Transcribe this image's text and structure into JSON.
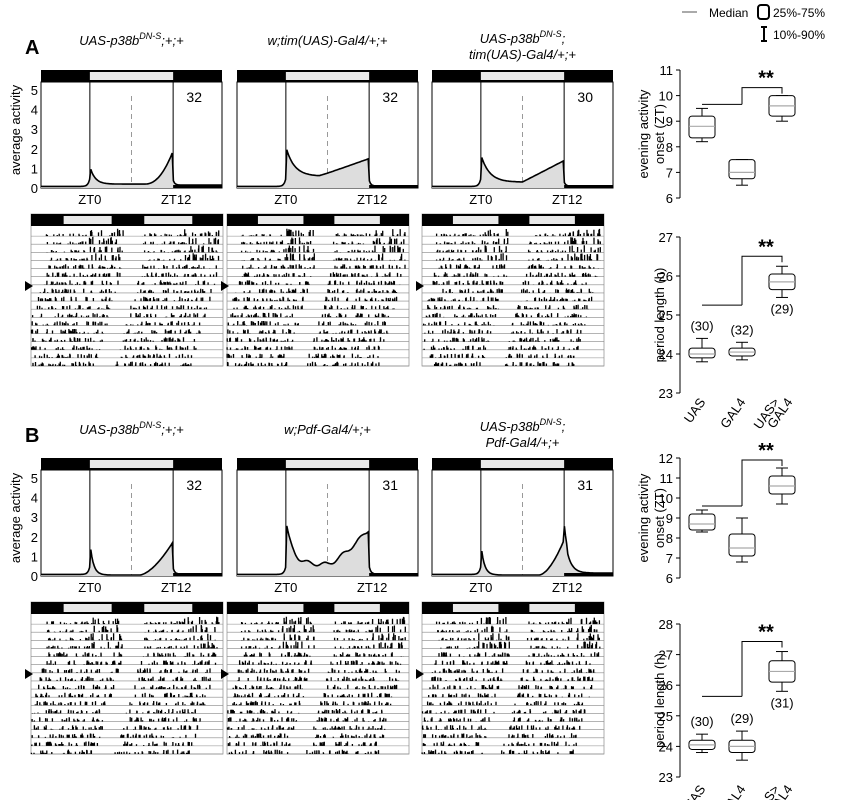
{
  "legend": {
    "median": "Median",
    "iqr": "25%-75%",
    "whisker": "10%-90%"
  },
  "panels": [
    {
      "letter": "A",
      "titles": [
        [
          "UAS-p38b",
          "DN-S",
          ";+;+"
        ],
        [
          "w;tim(UAS)-Gal4/+;+"
        ],
        [
          "UAS-p38b",
          "DN-S",
          ";",
          "tim(UAS)-Gal4/+;+"
        ]
      ],
      "counts": [
        "32",
        "32",
        "30"
      ],
      "xticks": [
        "ZT0",
        "ZT12"
      ],
      "y_label": "average activity",
      "y_ticks": [
        "0",
        "1",
        "2",
        "3",
        "4",
        "5"
      ],
      "evening_onset": {
        "ylabel": [
          "evening activity",
          "onset (ZT)"
        ],
        "yticks": [
          "6",
          "7",
          "8",
          "9",
          "10",
          "11"
        ],
        "ylim": [
          6,
          11
        ],
        "signif": "**",
        "boxes": [
          {
            "group": "UAS",
            "p10": 8.2,
            "q1": 8.35,
            "median": 8.8,
            "q3": 9.2,
            "p90": 9.5
          },
          {
            "group": "GAL4",
            "p10": 6.5,
            "q1": 6.75,
            "median": 7.0,
            "q3": 7.5,
            "p90": 7.5
          },
          {
            "group": "UAS>GAL4",
            "p10": 9.0,
            "q1": 9.2,
            "median": 9.6,
            "q3": 10.0,
            "p90": 10.0
          }
        ]
      },
      "period": {
        "ylabel": "period length (h)",
        "yticks": [
          "23",
          "24",
          "25",
          "26",
          "27"
        ],
        "ylim": [
          23,
          27
        ],
        "signif": "**",
        "ns": [
          "(30)",
          "(32)",
          "(29)"
        ],
        "boxes": [
          {
            "group": "UAS",
            "p10": 23.8,
            "q1": 23.9,
            "median": 24.0,
            "q3": 24.15,
            "p90": 24.4
          },
          {
            "group": "GAL4",
            "p10": 23.85,
            "q1": 23.95,
            "median": 24.05,
            "q3": 24.15,
            "p90": 24.3
          },
          {
            "group": "UAS>GAL4",
            "p10": 25.45,
            "q1": 25.65,
            "median": 25.85,
            "q3": 26.05,
            "p90": 26.25
          }
        ]
      }
    },
    {
      "letter": "B",
      "titles": [
        [
          "UAS-p38b",
          "DN-S",
          ";+;+"
        ],
        [
          "w;Pdf-Gal4/+;+"
        ],
        [
          "UAS-p38b",
          "DN-S",
          ";",
          "Pdf-Gal4/+;+"
        ]
      ],
      "counts": [
        "32",
        "31",
        "31"
      ],
      "xticks": [
        "ZT0",
        "ZT12"
      ],
      "y_label": "average activity",
      "y_ticks": [
        "0",
        "1",
        "2",
        "3",
        "4",
        "5"
      ],
      "evening_onset": {
        "ylabel": [
          "evening activity",
          "onset (ZT)"
        ],
        "yticks": [
          "6",
          "7",
          "8",
          "9",
          "10",
          "11",
          "12"
        ],
        "ylim": [
          6,
          12
        ],
        "signif": "**",
        "boxes": [
          {
            "group": "UAS",
            "p10": 8.3,
            "q1": 8.4,
            "median": 8.7,
            "q3": 9.2,
            "p90": 9.4
          },
          {
            "group": "GAL4",
            "p10": 6.8,
            "q1": 7.1,
            "median": 7.5,
            "q3": 8.2,
            "p90": 9.0
          },
          {
            "group": "UAS>GAL4",
            "p10": 9.7,
            "q1": 10.2,
            "median": 10.6,
            "q3": 11.1,
            "p90": 11.5
          }
        ]
      },
      "period": {
        "ylabel": "period length (h)",
        "yticks": [
          "23",
          "24",
          "25",
          "26",
          "27",
          "28"
        ],
        "ylim": [
          23,
          28
        ],
        "signif": "**",
        "ns": [
          "(30)",
          "(29)",
          "(31)"
        ],
        "boxes": [
          {
            "group": "UAS",
            "p10": 23.8,
            "q1": 23.9,
            "median": 24.05,
            "q3": 24.2,
            "p90": 24.4
          },
          {
            "group": "GAL4",
            "p10": 23.55,
            "q1": 23.8,
            "median": 24.0,
            "q3": 24.2,
            "p90": 24.5
          },
          {
            "group": "UAS>GAL4",
            "p10": 25.8,
            "q1": 26.1,
            "median": 26.45,
            "q3": 26.8,
            "p90": 27.1
          }
        ]
      }
    }
  ],
  "groups": [
    "UAS",
    "GAL4",
    [
      "UAS>",
      "GAL4"
    ]
  ]
}
